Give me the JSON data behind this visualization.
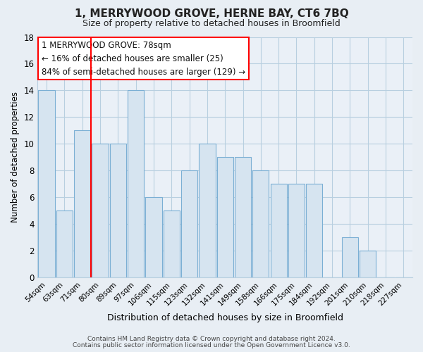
{
  "title": "1, MERRYWOOD GROVE, HERNE BAY, CT6 7BQ",
  "subtitle": "Size of property relative to detached houses in Broomfield",
  "xlabel": "Distribution of detached houses by size in Broomfield",
  "ylabel": "Number of detached properties",
  "bar_labels": [
    "54sqm",
    "63sqm",
    "71sqm",
    "80sqm",
    "89sqm",
    "97sqm",
    "106sqm",
    "115sqm",
    "123sqm",
    "132sqm",
    "141sqm",
    "149sqm",
    "158sqm",
    "166sqm",
    "175sqm",
    "184sqm",
    "192sqm",
    "201sqm",
    "210sqm",
    "218sqm",
    "227sqm"
  ],
  "bar_heights": [
    14,
    5,
    11,
    10,
    10,
    14,
    6,
    5,
    8,
    10,
    9,
    9,
    8,
    7,
    7,
    7,
    0,
    3,
    2,
    0,
    0
  ],
  "bar_color": "#d6e4f0",
  "bar_edge_color": "#7bafd4",
  "red_line_index": 3,
  "annotation_line1": "1 MERRYWOOD GROVE: 78sqm",
  "annotation_line2": "← 16% of detached houses are smaller (25)",
  "annotation_line3": "84% of semi-detached houses are larger (129) →",
  "ylim": [
    0,
    18
  ],
  "yticks": [
    0,
    2,
    4,
    6,
    8,
    10,
    12,
    14,
    16,
    18
  ],
  "footer1": "Contains HM Land Registry data © Crown copyright and database right 2024.",
  "footer2": "Contains public sector information licensed under the Open Government Licence v3.0.",
  "bg_color": "#e8eef4",
  "plot_bg_color": "#eaf0f7",
  "grid_color": "#b8cfe0",
  "title_fontsize": 11,
  "subtitle_fontsize": 9
}
